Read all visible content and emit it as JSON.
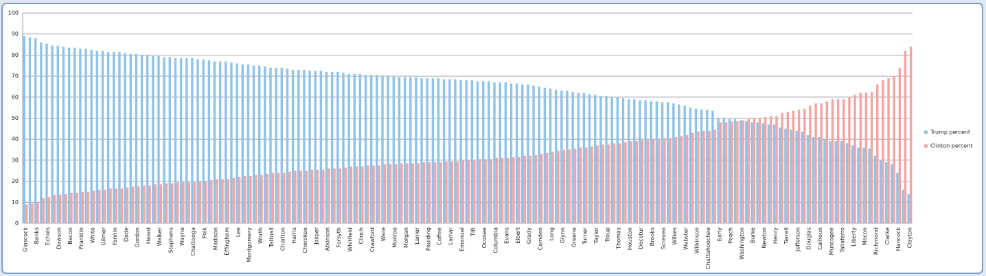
{
  "chart_data": {
    "type": "bar",
    "categories": [
      "Glascock",
      null,
      "Banks",
      null,
      "Echols",
      null,
      "Dawson",
      null,
      "Bacon",
      null,
      "Franklin",
      null,
      "White",
      null,
      "Gilmer",
      null,
      "Fannin",
      null,
      "Dade",
      null,
      "Gordon",
      null,
      "Heard",
      null,
      "Walker",
      null,
      "Stephens",
      null,
      "Wayne",
      null,
      "Chattooga",
      null,
      "Polk",
      null,
      "Madison",
      null,
      "Effingham",
      null,
      "Lee",
      null,
      "Montgomery",
      null,
      "Worth",
      null,
      "Tattnall",
      null,
      "Charlton",
      null,
      "Harris",
      null,
      "Cherokee",
      null,
      "Jasper",
      null,
      "Atkinson",
      null,
      "Forsyth",
      null,
      "Whitfield",
      null,
      "Clinch",
      null,
      "Crawford",
      null,
      "Ware",
      null,
      "Monroe",
      null,
      "Morgan",
      null,
      "Lanier",
      null,
      "Paulding",
      null,
      "Coffee",
      null,
      "Lamar",
      null,
      "Emanuel",
      null,
      "Tift",
      null,
      "Oconee",
      null,
      "Columbia",
      null,
      "Evans",
      null,
      "Elbert",
      null,
      "Grady",
      null,
      "Camden",
      null,
      "Long",
      null,
      "Glynn",
      null,
      "Greene",
      null,
      "Turner",
      null,
      "Taylor",
      null,
      "Troup",
      null,
      "Thomas",
      null,
      "Houston",
      null,
      "Decatur",
      null,
      "Brooks",
      null,
      "Screven",
      null,
      "Wilkes",
      null,
      "Webster",
      null,
      "Wilkinson",
      null,
      "Chattahoochee",
      null,
      "Early",
      null,
      "Peach",
      null,
      "Washington",
      null,
      "Burke",
      null,
      "Newton",
      null,
      "Henry",
      null,
      "Terrell",
      null,
      "Jefferson",
      null,
      "Douglas",
      null,
      "Calhoun",
      null,
      "Muscogee",
      null,
      "Taliaferro",
      null,
      "Liberty",
      null,
      "Macon",
      null,
      "Richmond",
      null,
      "Clarke",
      null,
      "Hancock",
      null,
      "Clayton"
    ],
    "series": [
      {
        "name": "Trump percent",
        "color": "#8fc3e8",
        "values": [
          89,
          88.5,
          88,
          86,
          85.5,
          84.5,
          84.5,
          84,
          83.5,
          83.5,
          83,
          83,
          82.5,
          82,
          82,
          81.5,
          81.5,
          81.5,
          81,
          80.5,
          80.5,
          80,
          80,
          79.5,
          79.5,
          79,
          79,
          78.5,
          78.5,
          78.5,
          78.5,
          78,
          78,
          77.5,
          77,
          77,
          77,
          76.5,
          76,
          75.5,
          75.5,
          75,
          75,
          74.5,
          74,
          74,
          74,
          73.5,
          73,
          73,
          73,
          72.5,
          72.5,
          72.5,
          72,
          72,
          72,
          71.5,
          71,
          71,
          71,
          70.5,
          70.5,
          70.5,
          70,
          70,
          70,
          69.5,
          69.5,
          69.5,
          69.5,
          69,
          69,
          69,
          69,
          68.5,
          68.5,
          68.5,
          68,
          68,
          68,
          67.5,
          67.5,
          67.5,
          67,
          67,
          67,
          66.5,
          66.5,
          66,
          66,
          65.5,
          65,
          64.5,
          64,
          63.5,
          63,
          63,
          62.5,
          62,
          62,
          61.5,
          61,
          60.5,
          60.5,
          60,
          60,
          59.5,
          59,
          59,
          58.5,
          58.5,
          58,
          58,
          57.5,
          57.5,
          57,
          56.5,
          56,
          55,
          54.5,
          54,
          54,
          53.5,
          50,
          50,
          49.5,
          49.5,
          49,
          48.5,
          48,
          48,
          47.5,
          47,
          47,
          45.5,
          45,
          44.5,
          44,
          43.5,
          42,
          41,
          41,
          40,
          39,
          39,
          39,
          38,
          37,
          36,
          36,
          35.5,
          32,
          30,
          29,
          28,
          24,
          16,
          14
        ]
      },
      {
        "name": "Clinton percent",
        "color": "#f3a5a5",
        "values": [
          9,
          9.5,
          10,
          12,
          12.5,
          13.5,
          13.5,
          14,
          14.5,
          14.5,
          15,
          15,
          15.5,
          16,
          16,
          16.5,
          16.5,
          16.5,
          17,
          17.5,
          17.5,
          18,
          18,
          18.5,
          18.5,
          19,
          19,
          19.5,
          19.5,
          19.5,
          19.5,
          20,
          20,
          20.5,
          21,
          21,
          21,
          21.5,
          22,
          22.5,
          22.5,
          23,
          23,
          23.5,
          24,
          24,
          24,
          24.5,
          25,
          25,
          25,
          25.5,
          25.5,
          25.5,
          26,
          26,
          26,
          26.5,
          27,
          27,
          27,
          27.5,
          27.5,
          27.5,
          28,
          28,
          28,
          28.5,
          28.5,
          28.5,
          28.5,
          29,
          29,
          29,
          29,
          29.5,
          29.5,
          29.5,
          30,
          30,
          30,
          30.5,
          30.5,
          30.5,
          31,
          31,
          31,
          31.5,
          31.5,
          32,
          32,
          32.5,
          33,
          33.5,
          34,
          34.5,
          35,
          35,
          35.5,
          36,
          36,
          36.5,
          37,
          37.5,
          37.5,
          38,
          38,
          38.5,
          39,
          39,
          39.5,
          39.5,
          40,
          40,
          40.5,
          40.5,
          41,
          41.5,
          42,
          43,
          43.5,
          44,
          44,
          44.5,
          48,
          48,
          48.5,
          48.5,
          49,
          49.5,
          50,
          50,
          50.5,
          51,
          51,
          52.5,
          53,
          53.5,
          54,
          54.5,
          56,
          57,
          57,
          58,
          59,
          59,
          59,
          60,
          61,
          62,
          62,
          62.5,
          66,
          68,
          69,
          70,
          74,
          82,
          84
        ]
      }
    ],
    "ylim": [
      0,
      100
    ],
    "yticks": [
      0,
      10,
      20,
      30,
      40,
      50,
      60,
      70,
      80,
      90,
      100
    ],
    "grid": true,
    "legend": "right"
  }
}
